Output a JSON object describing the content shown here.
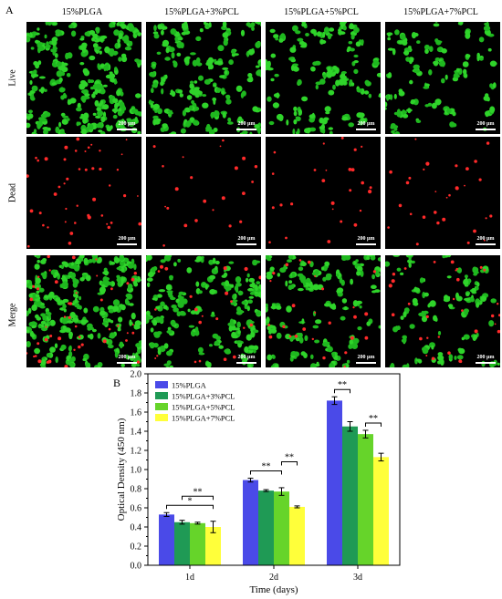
{
  "panel_a": {
    "letter": "A",
    "columns": [
      "15%PLGA",
      "15%PLGA+3%PCL",
      "15%PLGA+5%PCL",
      "15%PLGA+7%PCL"
    ],
    "rows": [
      "Live",
      "Dead",
      "Merge"
    ],
    "scale_bar": "200 μm",
    "colors": {
      "live": "#2fd42a",
      "dead": "#ff2a2a",
      "background": "#000000"
    }
  },
  "panel_b": {
    "letter": "B"
  },
  "chart_data": {
    "type": "bar",
    "xlabel": "Time (days)",
    "ylabel": "Optical Density (450 nm)",
    "categories": [
      "1d",
      "2d",
      "3d"
    ],
    "ylim": [
      0,
      2.0
    ],
    "yticks": [
      "0.0",
      "0.2",
      "0.4",
      "0.6",
      "0.8",
      "1.0",
      "1.2",
      "1.4",
      "1.6",
      "1.8",
      "2.0"
    ],
    "legend_position": "top-left",
    "series": [
      {
        "name": "15%PLGA",
        "color": "#4a4ae8",
        "values": [
          0.53,
          0.89,
          1.72
        ],
        "errors": [
          0.02,
          0.02,
          0.04
        ]
      },
      {
        "name": "15%PLGA+3%PCL",
        "color": "#1f9a55",
        "values": [
          0.45,
          0.78,
          1.45
        ],
        "errors": [
          0.02,
          0.01,
          0.05
        ]
      },
      {
        "name": "15%PLGA+5%PCL",
        "color": "#66d42a",
        "values": [
          0.44,
          0.77,
          1.37
        ],
        "errors": [
          0.01,
          0.04,
          0.04
        ]
      },
      {
        "name": "15%PLGA+7%PCL",
        "color": "#ffff3a",
        "values": [
          0.4,
          0.61,
          1.13
        ],
        "errors": [
          0.06,
          0.01,
          0.04
        ]
      }
    ],
    "significance": [
      {
        "category": 0,
        "from": 0,
        "to": 3,
        "label": "*"
      },
      {
        "category": 0,
        "from": 1,
        "to": 3,
        "label": "**"
      },
      {
        "category": 1,
        "from": 0,
        "to": 2,
        "label": "**"
      },
      {
        "category": 1,
        "from": 2,
        "to": 3,
        "label": "**"
      },
      {
        "category": 2,
        "from": 0,
        "to": 1,
        "label": "**"
      },
      {
        "category": 2,
        "from": 2,
        "to": 3,
        "label": "**"
      }
    ]
  }
}
